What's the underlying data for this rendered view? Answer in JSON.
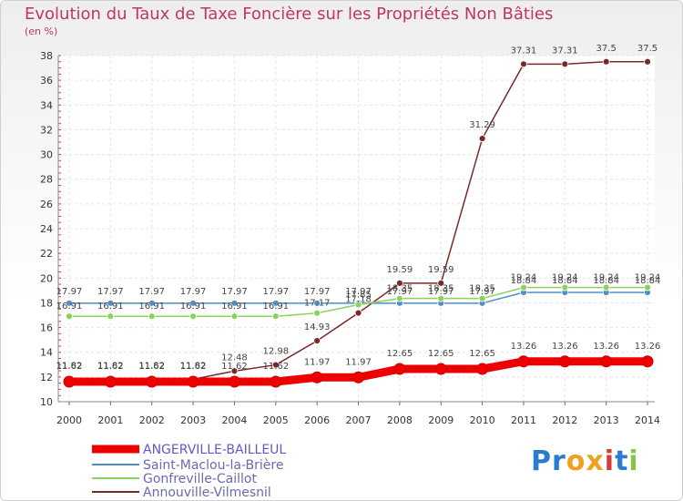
{
  "title": "Evolution du Taux de Taxe Foncière sur les Propriétés Non Bâties",
  "subtitle": "(en %)",
  "logo": "Proxiti",
  "chart_data": {
    "type": "line",
    "title": "Evolution du Taux de Taxe Foncière sur les Propriétés Non Bâties",
    "ylabel": "(en %)",
    "xlabel": "",
    "ylim": [
      10,
      38
    ],
    "yticks": [
      10,
      12,
      14,
      16,
      18,
      20,
      22,
      24,
      26,
      28,
      30,
      32,
      34,
      36,
      38
    ],
    "x": [
      "2000",
      "2001",
      "2002",
      "2003",
      "2004",
      "2005",
      "2006",
      "2007",
      "2008",
      "2009",
      "2010",
      "2011",
      "2012",
      "2013",
      "2014"
    ],
    "legend_position": "bottom-left",
    "series": [
      {
        "name": "ANGERVILLE-BAILLEUL",
        "color": "#ee0000",
        "values": [
          11.62,
          11.62,
          11.62,
          11.62,
          11.62,
          11.62,
          11.97,
          11.97,
          12.65,
          12.65,
          12.65,
          13.26,
          13.26,
          13.26,
          13.26
        ],
        "labels": [
          "11.62",
          "11.62",
          "11.62",
          "11.62",
          "11.62",
          "11.62",
          "11.97",
          "11.97",
          "12.65",
          "12.65",
          "12.65",
          "13.26",
          "13.26",
          "13.26",
          "13.26"
        ]
      },
      {
        "name": "Saint-Maclou-la-Brière",
        "color": "#4f8fc6",
        "values": [
          17.97,
          17.97,
          17.97,
          17.97,
          17.97,
          17.97,
          17.97,
          17.97,
          17.97,
          17.97,
          17.97,
          18.84,
          18.84,
          18.84,
          18.84
        ],
        "labels": [
          "17.97",
          "17.97",
          "17.97",
          "17.97",
          "17.97",
          "17.97",
          "17.97",
          "17.97",
          "17.97",
          "17.97",
          "17.97",
          "18.84",
          "18.84",
          "18.84",
          "18.84"
        ]
      },
      {
        "name": "Gonfreville-Caillot",
        "color": "#8ad35a",
        "values": [
          16.91,
          16.91,
          16.91,
          16.91,
          16.91,
          16.91,
          17.17,
          17.85,
          18.35,
          18.35,
          18.35,
          19.24,
          19.24,
          19.24,
          19.24
        ],
        "labels": [
          "16.91",
          "16.91",
          "16.91",
          "16.91",
          "16.91",
          "16.91",
          "17.17",
          "17.85",
          "18.35",
          "18.35",
          "18.35",
          "19.24",
          "19.24",
          "19.24",
          "19.24"
        ]
      },
      {
        "name": "Annouville-Vilmesnil",
        "color": "#7a2828",
        "values": [
          11.82,
          11.82,
          11.82,
          11.82,
          12.48,
          12.98,
          14.93,
          17.18,
          19.59,
          19.59,
          31.29,
          37.31,
          37.31,
          37.5,
          37.5
        ],
        "labels": [
          "11.82",
          "11.82",
          "11.82",
          "11.82",
          "12.48",
          "12.98",
          "14.93",
          "17.18",
          "19.59",
          "19.59",
          "31.29",
          "37.31",
          "37.31",
          "37.5",
          "37.5"
        ]
      }
    ]
  }
}
